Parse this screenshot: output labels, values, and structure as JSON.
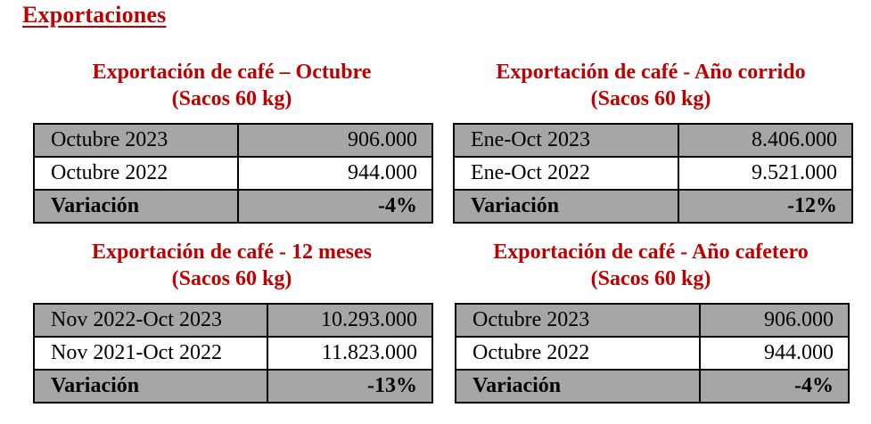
{
  "page_title": "Exportaciones",
  "blocks": [
    {
      "title_line1": "Exportación de café – Octubre",
      "title_line2": "(Sacos 60 kg)",
      "rows": [
        {
          "label": "Octubre 2023",
          "value": "906.000"
        },
        {
          "label": "Octubre 2022",
          "value": "944.000"
        },
        {
          "label": "Variación",
          "value": "-4%"
        }
      ]
    },
    {
      "title_line1": "Exportación de café - Año corrido",
      "title_line2": "(Sacos 60 kg)",
      "rows": [
        {
          "label": "Ene-Oct 2023",
          "value": "8.406.000"
        },
        {
          "label": "Ene-Oct 2022",
          "value": "9.521.000"
        },
        {
          "label": "Variación",
          "value": "-12%"
        }
      ]
    },
    {
      "title_line1": "Exportación de café - 12 meses",
      "title_line2": "(Sacos 60 kg)",
      "rows": [
        {
          "label": "Nov 2022-Oct 2023",
          "value": "10.293.000"
        },
        {
          "label": "Nov 2021-Oct 2022",
          "value": "11.823.000"
        },
        {
          "label": "Variación",
          "value": "-13%"
        }
      ]
    },
    {
      "title_line1": "Exportación de café - Año cafetero",
      "title_line2": "(Sacos 60 kg)",
      "rows": [
        {
          "label": "Octubre 2023",
          "value": "906.000"
        },
        {
          "label": "Octubre 2022",
          "value": "944.000"
        },
        {
          "label": "Variación",
          "value": "-4%"
        }
      ]
    }
  ],
  "colors": {
    "title_red": "#c00000",
    "shaded_row": "#a6a6a6",
    "border": "#000000"
  }
}
